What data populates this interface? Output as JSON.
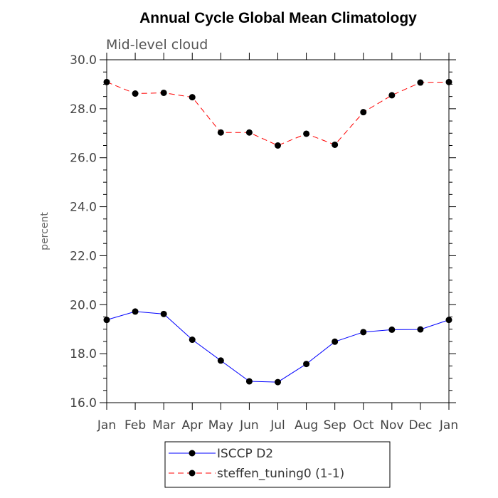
{
  "chart_data": {
    "type": "line",
    "title": "Annual Cycle Global Mean Climatology",
    "subtitle": "Mid-level cloud",
    "xlabel": "",
    "ylabel": "percent",
    "categories": [
      "Jan",
      "Feb",
      "Mar",
      "Apr",
      "May",
      "Jun",
      "Jul",
      "Aug",
      "Sep",
      "Oct",
      "Nov",
      "Dec",
      "Jan"
    ],
    "ylim": [
      16.0,
      30.0
    ],
    "yticks": [
      "16.0",
      "18.0",
      "20.0",
      "22.0",
      "24.0",
      "26.0",
      "28.0",
      "30.0"
    ],
    "legend_position": "bottom-center",
    "series": [
      {
        "name": "ISCCP D2",
        "color": "#0000ff",
        "style": "solid",
        "values": [
          19.38,
          19.72,
          19.62,
          18.57,
          17.72,
          16.87,
          16.84,
          17.58,
          18.49,
          18.88,
          18.98,
          18.99,
          19.38
        ]
      },
      {
        "name": "steffen_tuning0 (1-1)",
        "color": "#ff0000",
        "style": "dashed",
        "values": [
          29.09,
          28.62,
          28.65,
          28.47,
          27.03,
          27.03,
          26.5,
          26.98,
          26.53,
          27.86,
          28.55,
          29.07,
          29.09
        ]
      }
    ]
  }
}
